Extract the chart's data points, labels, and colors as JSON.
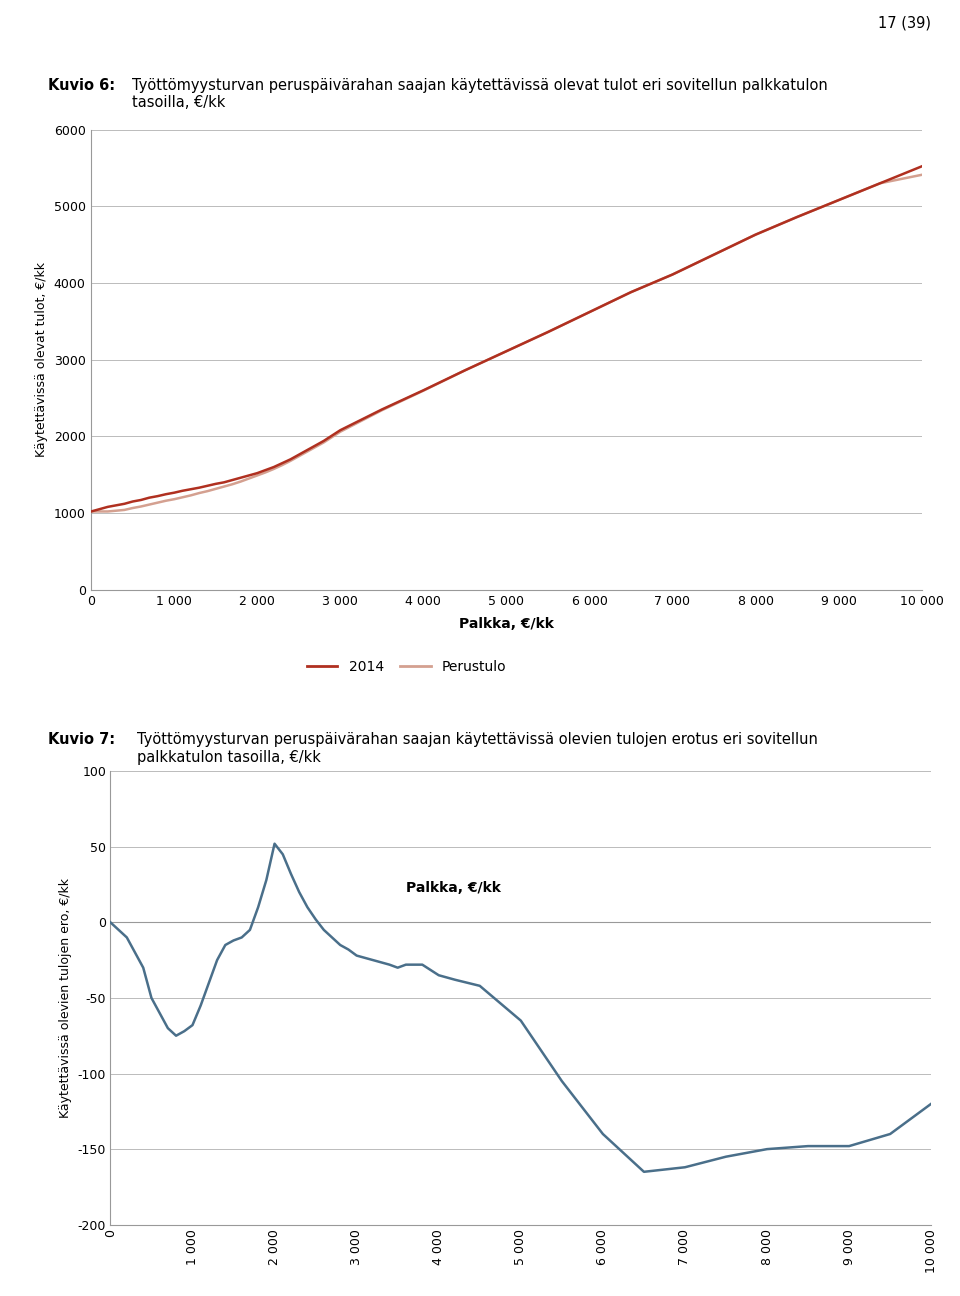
{
  "page_number": "17 (39)",
  "fig6_title_bold": "Kuvio 6:",
  "fig6_title_rest": "Työttömyysturvan peruspäivärahan saajan käytettävissä olevat tulot eri sovitellun palkkatulon\ntasoilla, €/kk",
  "fig7_title_bold": "Kuvio 7:",
  "fig7_title_rest": "Työttömyysturvan peruspäivärahan saajan käytettävissä olevien tulojen erotus eri sovitellun\npalkkatulon tasoilla, €/kk",
  "fig6_xlabel": "Palkka, €/kk",
  "fig6_ylabel": "Käytettävissä olevat tulot, €/kk",
  "fig7_xlabel": "Palkka, €/kk",
  "fig7_ylabel": "Käytettävissä olevien tulojen ero, €/kk",
  "fig6_ylim": [
    0,
    6000
  ],
  "fig6_xlim": [
    0,
    10000
  ],
  "fig7_ylim": [
    -200,
    100
  ],
  "fig7_xlim": [
    0,
    10000
  ],
  "fig6_yticks": [
    0,
    1000,
    2000,
    3000,
    4000,
    5000,
    6000
  ],
  "fig6_xticks": [
    0,
    1000,
    2000,
    3000,
    4000,
    5000,
    6000,
    7000,
    8000,
    9000,
    10000
  ],
  "fig7_yticks": [
    -200,
    -150,
    -100,
    -50,
    0,
    50,
    100
  ],
  "fig7_xticks": [
    0,
    1000,
    2000,
    3000,
    4000,
    5000,
    6000,
    7000,
    8000,
    9000,
    10000
  ],
  "fig6_xtick_labels": [
    "0",
    "1 000",
    "2 000",
    "3 000",
    "4 000",
    "5 000",
    "6 000",
    "7 000",
    "8 000",
    "9 000",
    "10 000"
  ],
  "fig7_xtick_labels": [
    "0",
    "1 000",
    "2 000",
    "3 000",
    "4 000",
    "5 000",
    "6 000",
    "7 000",
    "8 000",
    "9 000",
    "10 000"
  ],
  "legend2014_label": "2014",
  "legend_perustulo_label": "Perustulo",
  "color_2014": "#b03020",
  "color_perustulo": "#d4a090",
  "color_fig7_line": "#4a6f8a",
  "fig6_2014_x": [
    0,
    100,
    200,
    300,
    400,
    500,
    600,
    700,
    800,
    900,
    1000,
    1100,
    1200,
    1300,
    1400,
    1500,
    1600,
    1700,
    1800,
    1900,
    2000,
    2100,
    2200,
    2300,
    2400,
    2500,
    2600,
    2700,
    2800,
    2900,
    3000,
    3500,
    4000,
    4500,
    5000,
    5500,
    6000,
    6500,
    7000,
    7500,
    8000,
    8500,
    9000,
    9500,
    10000
  ],
  "fig6_2014_y": [
    1020,
    1050,
    1080,
    1100,
    1120,
    1150,
    1170,
    1200,
    1220,
    1245,
    1265,
    1290,
    1310,
    1330,
    1355,
    1380,
    1400,
    1430,
    1460,
    1490,
    1520,
    1560,
    1600,
    1650,
    1700,
    1760,
    1820,
    1880,
    1940,
    2010,
    2080,
    2350,
    2600,
    2860,
    3110,
    3360,
    3620,
    3880,
    4110,
    4370,
    4630,
    4860,
    5080,
    5300,
    5520
  ],
  "fig6_perustulo_x": [
    0,
    100,
    200,
    300,
    400,
    500,
    600,
    700,
    800,
    900,
    1000,
    1100,
    1200,
    1300,
    1400,
    1500,
    1600,
    1700,
    1800,
    1900,
    2000,
    2100,
    2200,
    2300,
    2400,
    2500,
    2600,
    2700,
    2800,
    2900,
    3000,
    3500,
    4000,
    4500,
    5000,
    5500,
    6000,
    6500,
    7000,
    7500,
    8000,
    8500,
    9000,
    9500,
    10000
  ],
  "fig6_perustulo_y": [
    1020,
    1020,
    1020,
    1030,
    1040,
    1065,
    1085,
    1110,
    1135,
    1160,
    1180,
    1205,
    1230,
    1260,
    1285,
    1315,
    1345,
    1375,
    1410,
    1450,
    1490,
    1530,
    1575,
    1625,
    1680,
    1740,
    1800,
    1860,
    1920,
    1990,
    2060,
    2340,
    2595,
    2860,
    3110,
    3360,
    3620,
    3880,
    4110,
    4370,
    4630,
    4860,
    5080,
    5300,
    5410
  ],
  "fig7_x": [
    0,
    100,
    200,
    300,
    400,
    500,
    600,
    700,
    800,
    900,
    1000,
    1100,
    1200,
    1300,
    1400,
    1500,
    1600,
    1700,
    1800,
    1900,
    2000,
    2100,
    2200,
    2300,
    2400,
    2500,
    2600,
    2700,
    2800,
    2900,
    3000,
    3200,
    3400,
    3500,
    3600,
    3800,
    4000,
    4200,
    4500,
    5000,
    5500,
    6000,
    6500,
    7000,
    7500,
    8000,
    8500,
    9000,
    9500,
    10000
  ],
  "fig7_y": [
    0,
    -5,
    -10,
    -20,
    -30,
    -50,
    -60,
    -70,
    -75,
    -72,
    -68,
    -55,
    -40,
    -25,
    -15,
    -12,
    -10,
    -5,
    10,
    28,
    52,
    45,
    32,
    20,
    10,
    2,
    -5,
    -10,
    -15,
    -18,
    -22,
    -25,
    -28,
    -30,
    -28,
    -28,
    -35,
    -38,
    -42,
    -65,
    -105,
    -140,
    -165,
    -162,
    -155,
    -150,
    -148,
    -148,
    -140,
    -120
  ]
}
